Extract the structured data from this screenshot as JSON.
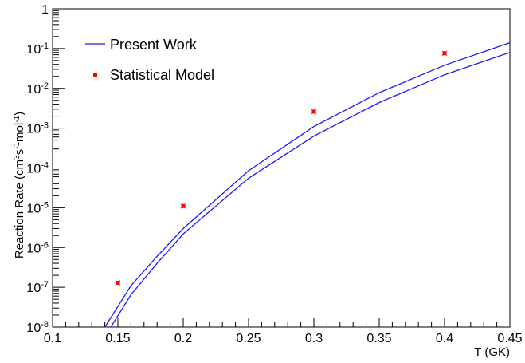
{
  "chart_data": {
    "type": "line",
    "xlabel": "T (GK)",
    "ylabel": "Reaction Rate (cm³s⁻¹mol⁻¹)",
    "ylabel_parts": {
      "a": "Reaction Rate (cm",
      "sup1": "3",
      "b": "s",
      "sup2": "-1",
      "c": "mol",
      "sup3": "-1",
      "d": ")"
    },
    "xlim": [
      0.1,
      0.45
    ],
    "ylim": [
      1e-08,
      1
    ],
    "yscale": "log",
    "x_ticks": [
      "0.1",
      "0.15",
      "0.2",
      "0.25",
      "0.3",
      "0.35",
      "0.4",
      "0.45"
    ],
    "y_ticks": [
      {
        "base": "10",
        "exp": "-8"
      },
      {
        "base": "10",
        "exp": "-7"
      },
      {
        "base": "10",
        "exp": "-6"
      },
      {
        "base": "10",
        "exp": "-5"
      },
      {
        "base": "10",
        "exp": "-4"
      },
      {
        "base": "10",
        "exp": "-3"
      },
      {
        "base": "10",
        "exp": "-2"
      },
      {
        "base": "10",
        "exp": "-1"
      },
      {
        "base": "1",
        "exp": ""
      }
    ],
    "grid": false,
    "legend_position": "top-left",
    "series": [
      {
        "name": "Present Work",
        "type": "line",
        "color": "#1a1aff",
        "band": "upper",
        "x": [
          0.14,
          0.16,
          0.18,
          0.2,
          0.25,
          0.3,
          0.35,
          0.4,
          0.45
        ],
        "y": [
          1e-08,
          1.1e-07,
          6e-07,
          3e-06,
          8.5e-05,
          0.0011,
          0.0078,
          0.038,
          0.14
        ]
      },
      {
        "name": "",
        "type": "line",
        "color": "#1a1aff",
        "band": "lower",
        "x": [
          0.1445,
          0.16,
          0.18,
          0.2,
          0.25,
          0.3,
          0.35,
          0.4,
          0.45
        ],
        "y": [
          1e-08,
          6.5e-08,
          4e-07,
          2.2e-06,
          5.5e-05,
          0.00063,
          0.0044,
          0.022,
          0.08
        ]
      },
      {
        "name": "Statistical Model",
        "type": "scatter",
        "color": "#ff0000",
        "x": [
          0.15,
          0.2,
          0.3,
          0.4
        ],
        "y": [
          1.3e-07,
          1.1e-05,
          0.0026,
          0.076
        ]
      }
    ]
  }
}
